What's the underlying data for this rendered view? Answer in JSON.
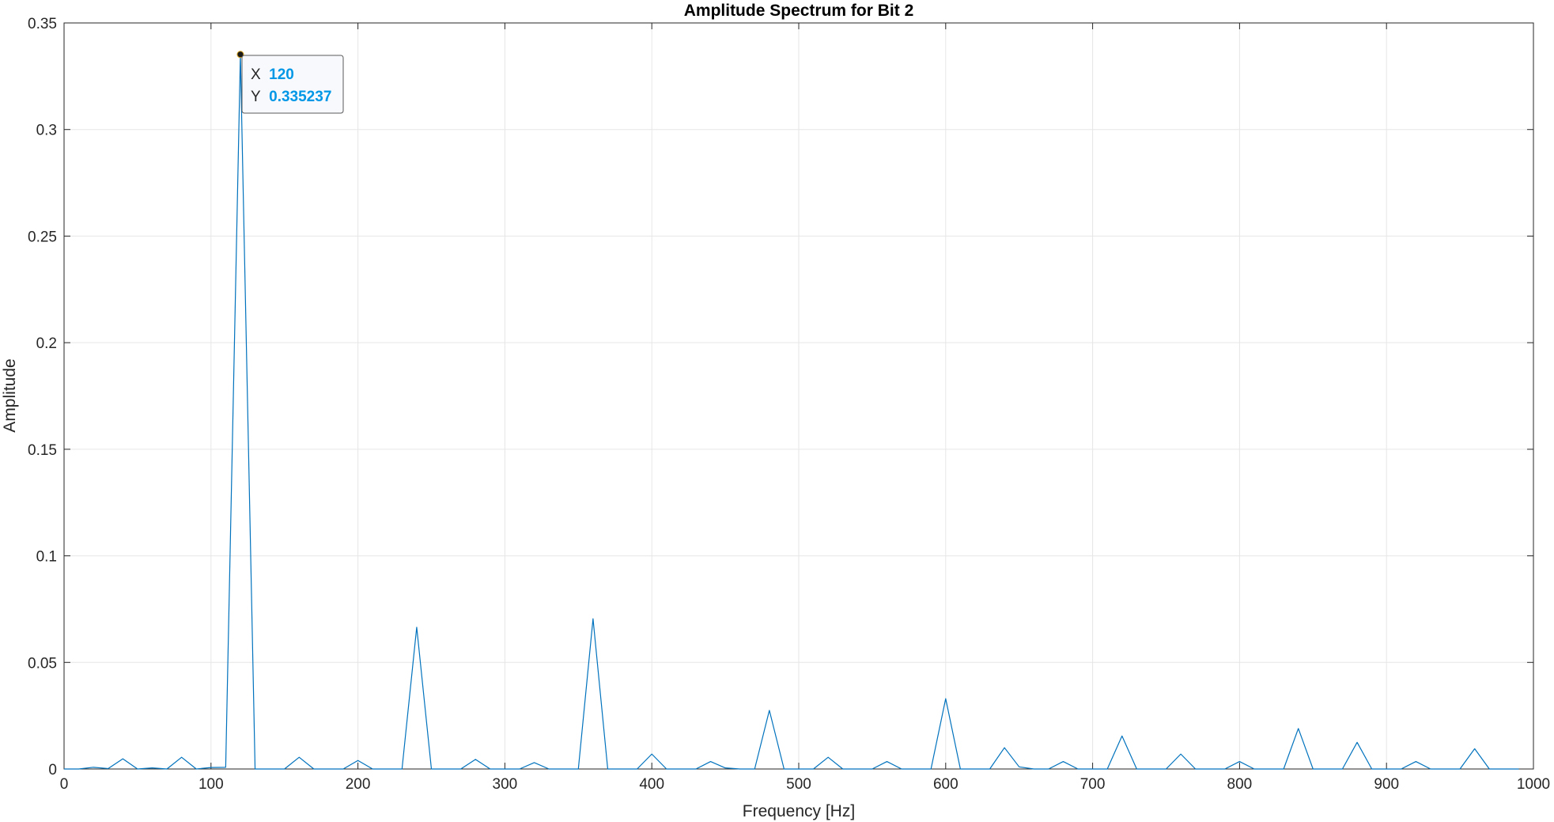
{
  "chart_data": {
    "type": "line",
    "title": "Amplitude Spectrum for Bit 2",
    "xlabel": "Frequency [Hz]",
    "ylabel": "Amplitude",
    "xlim": [
      0,
      1000
    ],
    "ylim": [
      0,
      0.35
    ],
    "grid": true,
    "x_ticks": [
      "0",
      "100",
      "200",
      "300",
      "400",
      "500",
      "600",
      "700",
      "800",
      "900",
      "1000"
    ],
    "y_ticks": [
      "0",
      "0.05",
      "0.1",
      "0.15",
      "0.2",
      "0.25",
      "0.3",
      "0.35"
    ],
    "series": [
      {
        "x": [
          0,
          10,
          20,
          30,
          40,
          50,
          60,
          70,
          80,
          90,
          100,
          110,
          120,
          130,
          140,
          150,
          160,
          170,
          180,
          190,
          200,
          210,
          220,
          230,
          240,
          250,
          260,
          270,
          280,
          290,
          300,
          310,
          320,
          330,
          340,
          350,
          360,
          370,
          380,
          390,
          400,
          410,
          420,
          430,
          440,
          450,
          460,
          470,
          480,
          490,
          500,
          510,
          520,
          530,
          540,
          550,
          560,
          570,
          580,
          590,
          600,
          610,
          620,
          630,
          640,
          650,
          660,
          670,
          680,
          690,
          700,
          710,
          720,
          730,
          740,
          750,
          760,
          770,
          780,
          790,
          800,
          810,
          820,
          830,
          840,
          850,
          860,
          870,
          880,
          890,
          900,
          910,
          920,
          930,
          940,
          950,
          960,
          970,
          980,
          990
        ],
        "y": [
          0,
          0,
          0.0008,
          0.0002,
          0.0048,
          0,
          0.0005,
          0,
          0.0055,
          0,
          0.0007,
          0.0008,
          0.335237,
          0,
          0,
          0,
          0.0055,
          0,
          0,
          0,
          0.004,
          0,
          0,
          0,
          0.0665,
          0,
          0,
          0,
          0.0045,
          0,
          0,
          0,
          0.003,
          0,
          0,
          0,
          0.0705,
          0,
          0,
          0,
          0.007,
          0,
          0,
          0,
          0.0035,
          0.0005,
          0,
          0,
          0.0275,
          0,
          0,
          0,
          0.0055,
          0,
          0,
          0,
          0.0035,
          0,
          0,
          0,
          0.033,
          0,
          0,
          0,
          0.01,
          0.001,
          0,
          0,
          0.0035,
          0,
          0,
          0,
          0.0155,
          0,
          0,
          0,
          0.007,
          0,
          0,
          0,
          0.0035,
          0,
          0,
          0,
          0.019,
          0,
          0,
          0,
          0.0125,
          0,
          0,
          0,
          0.0035,
          0,
          0,
          0,
          0.0095,
          0,
          0,
          0
        ]
      }
    ],
    "datatip": {
      "x_key": "X",
      "x_value": "120",
      "y_key": "Y",
      "y_value": "0.335237"
    }
  },
  "colors": {
    "line": "#0072BD",
    "grid": "#E6E6E6",
    "axis": "#262626",
    "datatip_value": "#0097E6",
    "datatip_border": "#5A5A5A",
    "datatip_bg": "#F8F9FD"
  }
}
